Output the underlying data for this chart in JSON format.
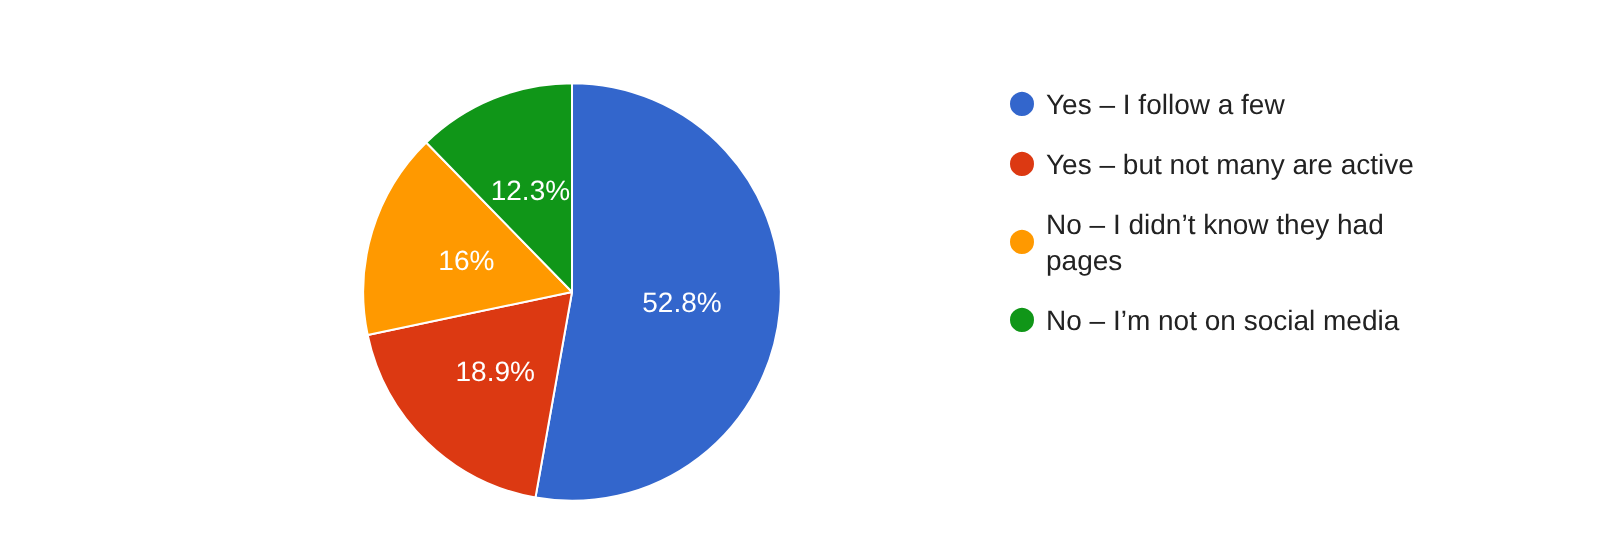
{
  "chart_data": {
    "type": "pie",
    "categories": [
      "Yes – I follow a few",
      "Yes – but not many are active",
      "No – I didn’t know they had pages",
      "No – I’m not on social media"
    ],
    "values": [
      52.8,
      18.9,
      16,
      12.3
    ],
    "colors": [
      "#3366cc",
      "#dc3912",
      "#ff9900",
      "#109618"
    ],
    "value_labels": [
      "52.8%",
      "18.9%",
      "16%",
      "12.3%"
    ],
    "legend": "right"
  }
}
